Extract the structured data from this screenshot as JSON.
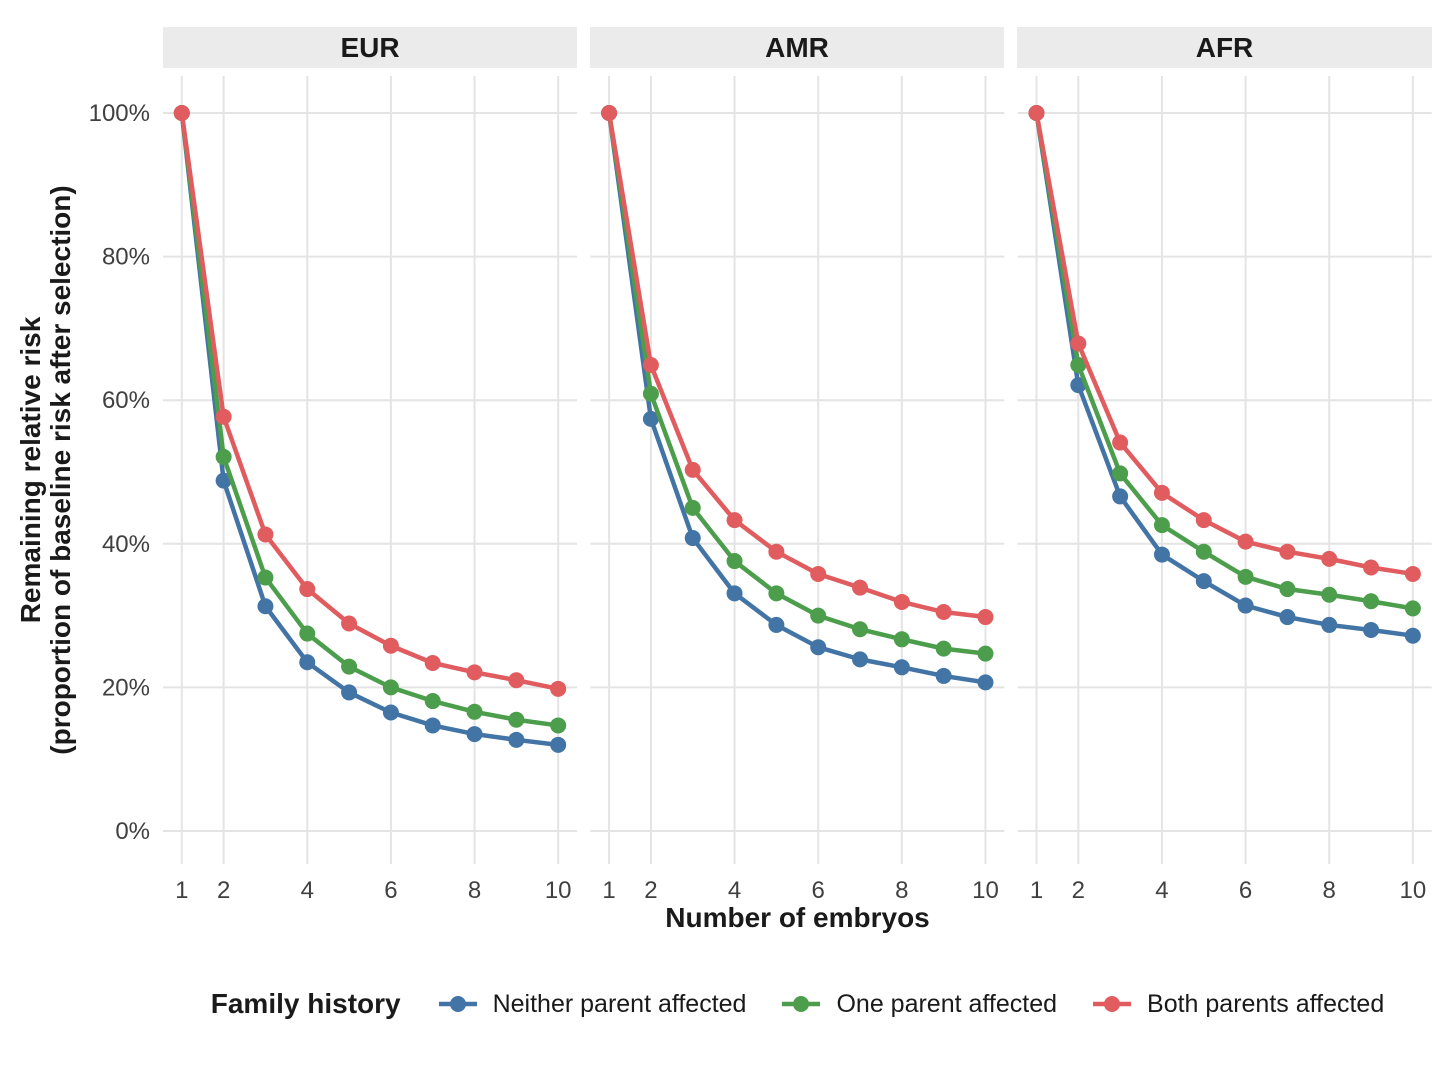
{
  "figure": {
    "y_axis_title_line1": "Remaining relative risk",
    "y_axis_title_line2": "(proportion of baseline risk after selection)",
    "x_axis_title": "Number of embryos",
    "legend_title": "Family history",
    "background_color": "#ffffff",
    "strip_background_color": "#ebebeb",
    "gridline_color": "#e4e4e4",
    "tick_label_color": "#404040"
  },
  "chart_data": {
    "type": "line",
    "title": "",
    "xlabel": "Number of embryos",
    "ylabel": "Remaining relative risk (proportion of baseline risk after selection)",
    "xlim": [
      1,
      10
    ],
    "ylim": [
      0,
      100
    ],
    "x": [
      1,
      2,
      3,
      4,
      5,
      6,
      7,
      8,
      9,
      10
    ],
    "x_tick_labels": [
      "1",
      "2",
      "4",
      "6",
      "8",
      "10"
    ],
    "x_tick_values": [
      1,
      2,
      4,
      6,
      8,
      10
    ],
    "y_tick_labels": [
      "0%",
      "20%",
      "40%",
      "60%",
      "80%",
      "100%"
    ],
    "y_tick_values": [
      0,
      20,
      40,
      60,
      80,
      100
    ],
    "grid": "major-only",
    "legend_position": "bottom",
    "legend_title": "Family history",
    "series_meta": [
      {
        "name": "Neither parent affected",
        "color": "#4274A5"
      },
      {
        "name": "One parent affected",
        "color": "#4C9E4C"
      },
      {
        "name": "Both parents affected",
        "color": "#E05C5E"
      }
    ],
    "facets": [
      {
        "label": "EUR",
        "series": [
          {
            "name": "Neither parent affected",
            "values": [
              100,
              48.8,
              31.3,
              23.5,
              19.3,
              16.5,
              14.7,
              13.5,
              12.7,
              12.0
            ]
          },
          {
            "name": "One parent affected",
            "values": [
              100,
              52.1,
              35.3,
              27.5,
              22.9,
              20.0,
              18.1,
              16.6,
              15.5,
              14.7
            ]
          },
          {
            "name": "Both parents affected",
            "values": [
              100,
              57.7,
              41.3,
              33.7,
              28.9,
              25.8,
              23.4,
              22.1,
              21.0,
              19.8
            ]
          }
        ]
      },
      {
        "label": "AMR",
        "series": [
          {
            "name": "Neither parent affected",
            "values": [
              100,
              57.4,
              40.8,
              33.1,
              28.7,
              25.6,
              23.9,
              22.8,
              21.6,
              20.7
            ]
          },
          {
            "name": "One parent affected",
            "values": [
              100,
              60.9,
              45.0,
              37.6,
              33.1,
              30.0,
              28.1,
              26.7,
              25.4,
              24.7
            ]
          },
          {
            "name": "Both parents affected",
            "values": [
              100,
              64.9,
              50.3,
              43.3,
              38.9,
              35.8,
              33.9,
              31.9,
              30.5,
              29.8
            ]
          }
        ]
      },
      {
        "label": "AFR",
        "series": [
          {
            "name": "Neither parent affected",
            "values": [
              100,
              62.1,
              46.6,
              38.5,
              34.8,
              31.4,
              29.8,
              28.7,
              28.0,
              27.2
            ]
          },
          {
            "name": "One parent affected",
            "values": [
              100,
              64.9,
              49.8,
              42.6,
              38.9,
              35.4,
              33.7,
              32.9,
              32.0,
              31.0
            ]
          },
          {
            "name": "Both parents affected",
            "values": [
              100,
              67.9,
              54.1,
              47.1,
              43.3,
              40.3,
              38.9,
              37.9,
              36.7,
              35.8
            ]
          }
        ]
      }
    ]
  }
}
